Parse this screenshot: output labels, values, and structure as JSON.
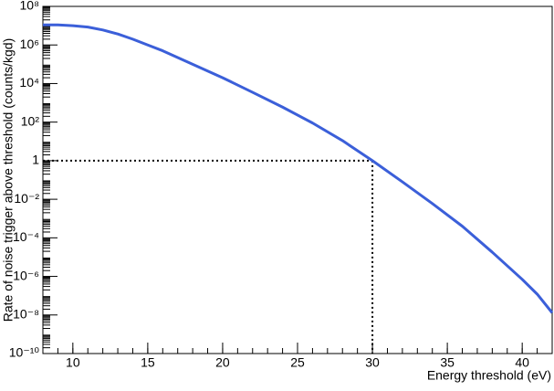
{
  "chart_data": {
    "type": "line",
    "xlabel": "Energy threshold (eV)",
    "ylabel": "Rate of noise trigger above threshold (counts/kgd)",
    "log_y": true,
    "xlim": [
      8,
      42
    ],
    "ylim": [
      1e-10,
      100000000
    ],
    "xticks": [
      10,
      15,
      20,
      25,
      30,
      35,
      40
    ],
    "yticks": [
      {
        "value": 1e-10,
        "label": "10⁻¹⁰"
      },
      {
        "value": 1e-08,
        "label": "10⁻⁸"
      },
      {
        "value": 1e-06,
        "label": "10⁻⁶"
      },
      {
        "value": 0.0001,
        "label": "10⁻⁴"
      },
      {
        "value": 0.01,
        "label": "10⁻²"
      },
      1,
      {
        "value": 100,
        "label": "10²"
      },
      {
        "value": 10000,
        "label": "10⁴"
      },
      {
        "value": 1000000,
        "label": "10⁶"
      },
      {
        "value": 100000000,
        "label": "10⁸"
      }
    ],
    "series": [
      {
        "color": "#3b5fd9",
        "x": [
          8,
          9,
          10,
          11,
          12,
          13,
          14,
          15,
          16,
          18,
          20,
          22,
          24,
          26,
          28,
          30,
          32,
          34,
          36,
          38,
          40,
          41,
          42
        ],
        "values": [
          11000000,
          11000000,
          10000000,
          8500000,
          6000000,
          3700000,
          2000000,
          1000000,
          500000,
          100000,
          20000,
          3500,
          600,
          90,
          11,
          1,
          0.08,
          0.006,
          0.0004,
          1.8e-05,
          7e-07,
          1.2e-07,
          1.3e-08
        ]
      }
    ],
    "reference_lines": {
      "x": 30,
      "y": 1,
      "color": "#000000"
    }
  }
}
